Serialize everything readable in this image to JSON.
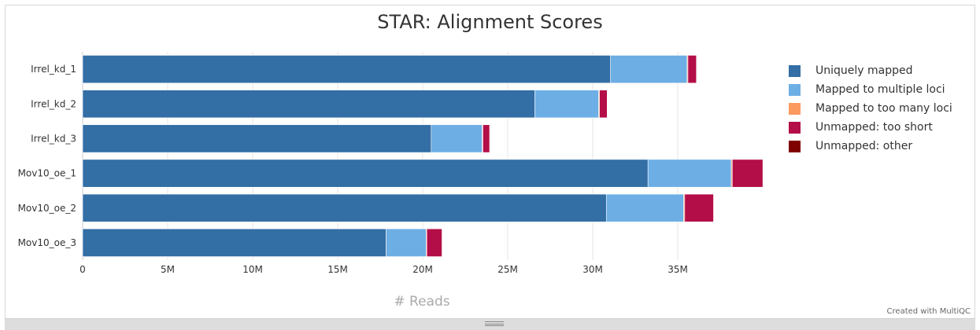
{
  "chart_data": {
    "type": "bar",
    "orientation": "horizontal",
    "stacked": true,
    "title": "STAR: Alignment Scores",
    "xlabel": "# Reads",
    "ylabel": "",
    "xlim": [
      0,
      40000000
    ],
    "x_ticks": [
      "0",
      "5M",
      "10M",
      "15M",
      "20M",
      "25M",
      "30M",
      "35M"
    ],
    "x_tick_values": [
      0,
      5000000,
      10000000,
      15000000,
      20000000,
      25000000,
      30000000,
      35000000
    ],
    "grid": true,
    "legend_position": "right",
    "categories": [
      "Irrel_kd_1",
      "Irrel_kd_2",
      "Irrel_kd_3",
      "Mov10_oe_1",
      "Mov10_oe_2",
      "Mov10_oe_3"
    ],
    "series": [
      {
        "name": "Uniquely mapped",
        "color": "#336ea5",
        "values": [
          31050000,
          26600000,
          20500000,
          33250000,
          30800000,
          17850000
        ]
      },
      {
        "name": "Mapped to multiple loci",
        "color": "#6daee5",
        "values": [
          4500000,
          3750000,
          3000000,
          4900000,
          4550000,
          2350000
        ]
      },
      {
        "name": "Mapped to too many loci",
        "color": "#fd9a60",
        "values": [
          50000,
          50000,
          40000,
          60000,
          60000,
          40000
        ]
      },
      {
        "name": "Unmapped: too short",
        "color": "#b30e48",
        "values": [
          500000,
          450000,
          400000,
          1800000,
          1700000,
          900000
        ]
      },
      {
        "name": "Unmapped: other",
        "color": "#7f0000",
        "values": [
          20000,
          20000,
          20000,
          20000,
          20000,
          20000
        ]
      }
    ]
  },
  "credit": "Created with MultiQC"
}
